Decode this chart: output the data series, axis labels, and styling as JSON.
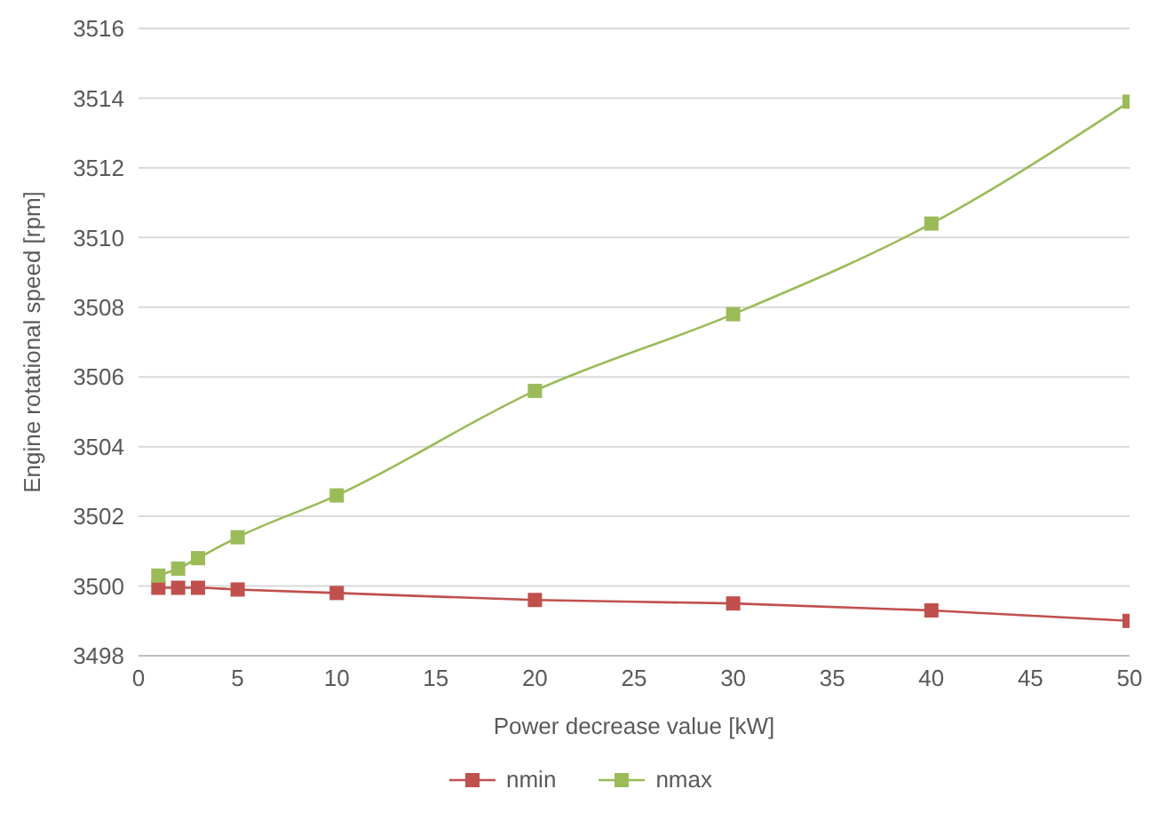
{
  "chart_data": {
    "type": "line",
    "xlabel": "Power decrease value [kW]",
    "ylabel": "Engine rotational speed [rpm]",
    "x": [
      1,
      2,
      3,
      5,
      10,
      20,
      30,
      40,
      50
    ],
    "series": [
      {
        "name": "nmin",
        "color": "#c0504d",
        "values": [
          3499.95,
          3499.95,
          3499.95,
          3499.9,
          3499.8,
          3499.6,
          3499.5,
          3499.3,
          3499.0
        ]
      },
      {
        "name": "nmax",
        "color": "#9bbb59",
        "values": [
          3500.3,
          3500.5,
          3500.8,
          3501.4,
          3502.6,
          3505.6,
          3507.8,
          3510.4,
          3513.9
        ]
      }
    ],
    "xlim": [
      0,
      50
    ],
    "xticks": [
      0,
      5,
      10,
      15,
      20,
      25,
      30,
      35,
      40,
      45,
      50
    ],
    "ylim": [
      3498,
      3516
    ],
    "yticks": [
      3498,
      3500,
      3502,
      3504,
      3506,
      3508,
      3510,
      3512,
      3514,
      3516
    ],
    "grid": "y",
    "legend": "bottom",
    "marker": "square",
    "line_style": "solid"
  }
}
